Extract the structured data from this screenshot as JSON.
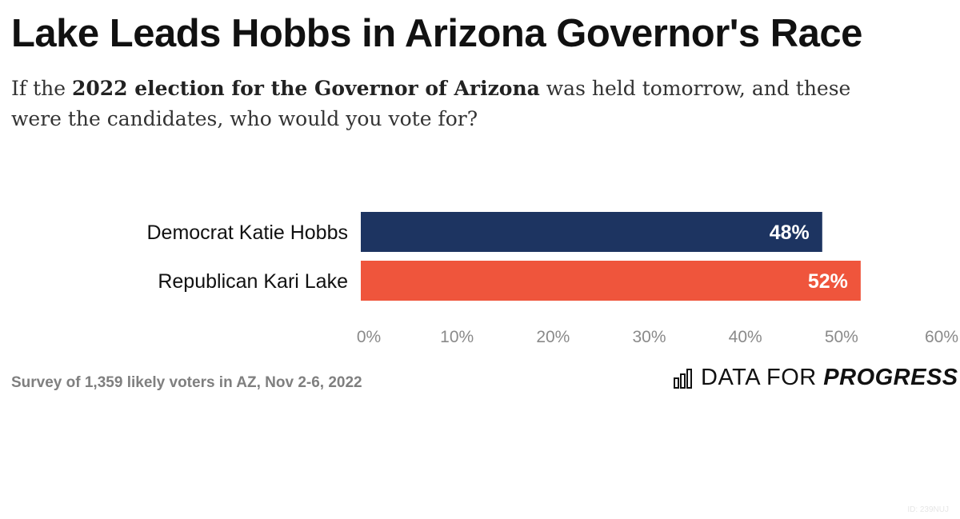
{
  "header": {
    "title": "Lake Leads Hobbs in Arizona Governor's Race",
    "subtitle_pre": "If the ",
    "subtitle_bold": "2022 election for the Governor of Arizona",
    "subtitle_post": " was held tomorrow, and these were the candidates, who would you vote for?"
  },
  "chart_data": {
    "type": "bar",
    "orientation": "horizontal",
    "categories": [
      "Democrat Katie Hobbs",
      "Republican Kari Lake"
    ],
    "values": [
      48,
      52
    ],
    "data_labels": [
      "48%",
      "52%"
    ],
    "colors": [
      "#1d3461",
      "#ef553c"
    ],
    "xlim": [
      0,
      60
    ],
    "x_ticks": [
      0,
      10,
      20,
      30,
      40,
      50,
      60
    ],
    "x_tick_labels": [
      "0%",
      "10%",
      "20%",
      "30%",
      "40%",
      "50%",
      "60%"
    ],
    "grid": false,
    "legend": "none"
  },
  "footer": {
    "note": "Survey of 1,359 likely voters in AZ, Nov 2-6, 2022",
    "brand_plain": "DATA FOR ",
    "brand_emphasis": "PROGRESS",
    "brand_icon": "bar-chart-icon",
    "image_id": "ID: 239NUJ"
  }
}
